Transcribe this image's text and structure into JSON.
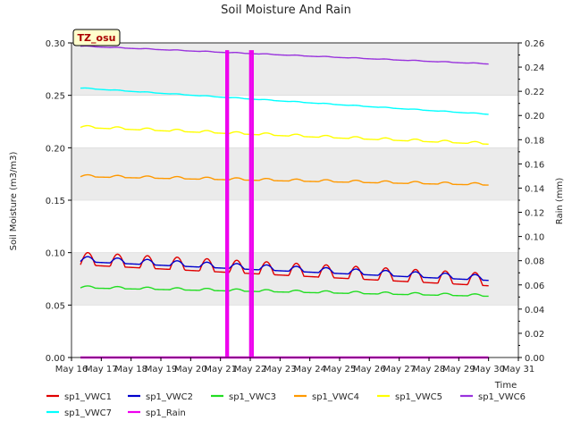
{
  "chart_data": {
    "type": "line",
    "title": "Soil Moisture And Rain",
    "station_label": "TZ_osu",
    "ylabel_left": "Soil Moisture (m3/m3)",
    "ylabel_right": "Rain (mm)",
    "xlabel": "Time",
    "x_ticks": [
      "May 16",
      "May 17",
      "May 18",
      "May 19",
      "May 20",
      "May 21",
      "May 22",
      "May 23",
      "May 24",
      "May 25",
      "May 26",
      "May 27",
      "May 28",
      "May 29",
      "May 30",
      "May 31"
    ],
    "y_left_ticks": [
      "0.00",
      "0.05",
      "0.10",
      "0.15",
      "0.20",
      "0.25",
      "0.30"
    ],
    "y_right_ticks": [
      "0.00",
      "0.02",
      "0.04",
      "0.06",
      "0.08",
      "0.10",
      "0.12",
      "0.14",
      "0.16",
      "0.18",
      "0.20",
      "0.22",
      "0.24",
      "0.26"
    ],
    "ylim_left": [
      0,
      0.3
    ],
    "ylim_right": [
      0,
      0.26
    ],
    "xlim_days": [
      16,
      31
    ],
    "grid": "horizontal bands",
    "legend_position": "bottom",
    "series": [
      {
        "name": "sp1_VWC1",
        "color": "#e00000",
        "start": 0.092,
        "end": 0.072,
        "amp": 0.012,
        "axis": "left"
      },
      {
        "name": "sp1_VWC2",
        "color": "#0000cc",
        "start": 0.093,
        "end": 0.075,
        "amp": 0.005,
        "axis": "left"
      },
      {
        "name": "sp1_VWC3",
        "color": "#22dd22",
        "start": 0.067,
        "end": 0.059,
        "amp": 0.002,
        "axis": "left"
      },
      {
        "name": "sp1_VWC4",
        "color": "#ff9900",
        "start": 0.173,
        "end": 0.165,
        "amp": 0.002,
        "axis": "left"
      },
      {
        "name": "sp1_VWC5",
        "color": "#ffff00",
        "start": 0.22,
        "end": 0.204,
        "amp": 0.002,
        "axis": "left"
      },
      {
        "name": "sp1_VWC6",
        "color": "#9933dd",
        "start": 0.297,
        "end": 0.28,
        "amp": 0.0005,
        "axis": "left"
      },
      {
        "name": "sp1_VWC7",
        "color": "#00ffff",
        "start": 0.257,
        "end": 0.232,
        "amp": 0.0005,
        "axis": "left"
      },
      {
        "name": "sp1_Rain",
        "color": "#ee00ee",
        "axis": "right",
        "x": [
          16.3,
          21.2,
          21.2,
          21.25,
          21.25,
          22.0,
          22.0,
          22.08,
          22.08,
          30.0
        ],
        "values": [
          0,
          0,
          0.253,
          0.253,
          0,
          0,
          0.253,
          0.253,
          0,
          0
        ]
      }
    ]
  }
}
